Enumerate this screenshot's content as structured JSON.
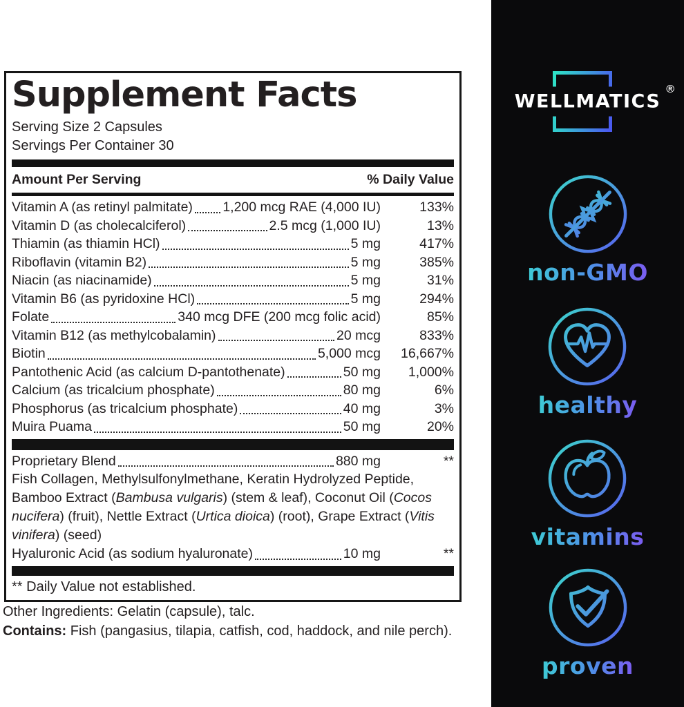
{
  "panel": {
    "title": "Supplement Facts",
    "serving_size": "Serving Size 2 Capsules",
    "servings_per_container": "Servings Per Container 30",
    "header": {
      "amount": "Amount Per Serving",
      "daily_value": "% Daily Value"
    },
    "nutrients": [
      {
        "name": "Vitamin A (as retinyl palmitate)",
        "amount": "1,200 mcg RAE (4,000 IU)",
        "dv": "133%"
      },
      {
        "name": "Vitamin D (as cholecalciferol)",
        "amount": "2.5 mcg (1,000 IU)",
        "dv": "13%"
      },
      {
        "name": "Thiamin (as thiamin HCl)",
        "amount": "5 mg",
        "dv": "417%"
      },
      {
        "name": "Riboflavin (vitamin B2)",
        "amount": "5 mg",
        "dv": "385%"
      },
      {
        "name": "Niacin (as niacinamide)",
        "amount": "5 mg",
        "dv": "31%"
      },
      {
        "name": "Vitamin B6 (as pyridoxine HCl)",
        "amount": "5 mg",
        "dv": "294%"
      },
      {
        "name": "Folate",
        "amount": "340 mcg DFE (200 mcg folic acid)",
        "dv": "85%"
      },
      {
        "name": "Vitamin B12 (as methylcobalamin)",
        "amount": "20 mcg",
        "dv": "833%"
      },
      {
        "name": "Biotin",
        "amount": "5,000 mcg",
        "dv": "16,667%"
      },
      {
        "name": "Pantothenic Acid (as calcium D-pantothenate)",
        "amount": "50 mg",
        "dv": "1,000%"
      },
      {
        "name": "Calcium (as tricalcium phosphate)",
        "amount": "80 mg",
        "dv": "6%"
      },
      {
        "name": "Phosphorus (as tricalcium phosphate)",
        "amount": "40 mg",
        "dv": "3%"
      },
      {
        "name": "Muira Puama",
        "amount": "50 mg",
        "dv": "20%"
      }
    ],
    "blend": {
      "name": "Proprietary Blend",
      "amount": "880 mg",
      "dv": "**",
      "description": [
        {
          "t": "Fish Collagen, Methylsulfonylmethane, Keratin Hydrolyzed Peptide, Bamboo Extract (",
          "i": false
        },
        {
          "t": "Bambusa vulgaris",
          "i": true
        },
        {
          "t": ") (stem & leaf), Coconut Oil (",
          "i": false
        },
        {
          "t": "Cocos nucifera",
          "i": true
        },
        {
          "t": ") (fruit), Nettle Extract (",
          "i": false
        },
        {
          "t": "Urtica dioica",
          "i": true
        },
        {
          "t": ") (root), Grape Extract (",
          "i": false
        },
        {
          "t": "Vitis vinifera",
          "i": true
        },
        {
          "t": ") (seed)",
          "i": false
        }
      ]
    },
    "hyaluronic": {
      "name": "Hyaluronic Acid (as sodium hyaluronate)",
      "amount": "10 mg",
      "dv": "**"
    },
    "footnote": "** Daily Value not established.",
    "other_ingredients": "Other Ingredients: Gelatin (capsule), talc.",
    "contains_label": "Contains:",
    "contains_text": " Fish (pangasius, tilapia, catfish, cod, haddock, and nile perch)."
  },
  "sidebar": {
    "brand": {
      "name": "WELLMATICS",
      "registered": "®"
    },
    "badges": [
      {
        "icon": "dna-crossed-icon",
        "label": "non-GMO"
      },
      {
        "icon": "heart-pulse-icon",
        "label": "healthy"
      },
      {
        "icon": "apple-icon",
        "label": "vitamins"
      },
      {
        "icon": "shield-check-icon",
        "label": "proven"
      }
    ],
    "colors": {
      "background": "#0a0a0c",
      "gradient_start": "#3ADCC9",
      "gradient_end": "#5A5BF2"
    }
  }
}
